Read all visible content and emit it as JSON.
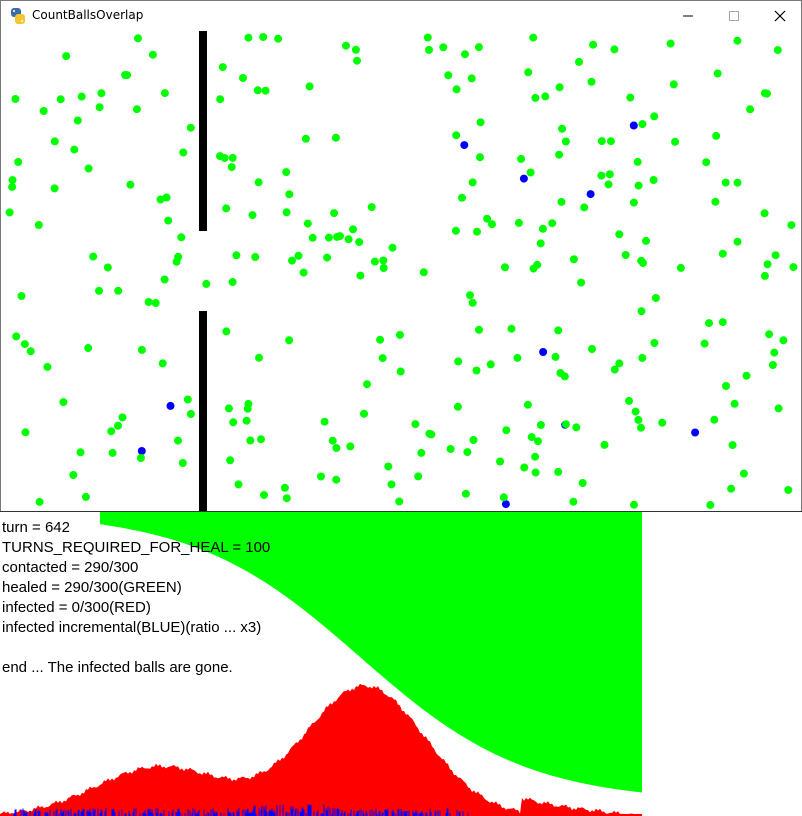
{
  "window": {
    "title": "CountBallsOverlap",
    "minimize_glyph": "—",
    "maximize_glyph": "☐",
    "close_glyph": "✕",
    "icon": "python-logo-icon"
  },
  "colors": {
    "healed": "#00ff00",
    "infected": "#ff0000",
    "incremental": "#0000ff",
    "wall": "#000000",
    "background": "#ffffff"
  },
  "stats": {
    "turn": "turn = 642",
    "turns_required": "TURNS_REQUIRED_FOR_HEAL = 100",
    "contacted": "contacted = 290/300",
    "healed": "healed = 290/300(GREEN)",
    "infected": "infected = 0/300(RED)",
    "incremental": "infected incremental(BLUE)(ratio ... x3)",
    "blank": "",
    "end_message": "end ... The infected balls are gone."
  },
  "simulation": {
    "total_balls": 300,
    "healed_balls": 290,
    "blue_balls": 10,
    "wall_gap": true
  },
  "history": {
    "turns": 642,
    "total": 300,
    "healed_final": 290,
    "infected_final": 0,
    "infected_peak": 128
  }
}
